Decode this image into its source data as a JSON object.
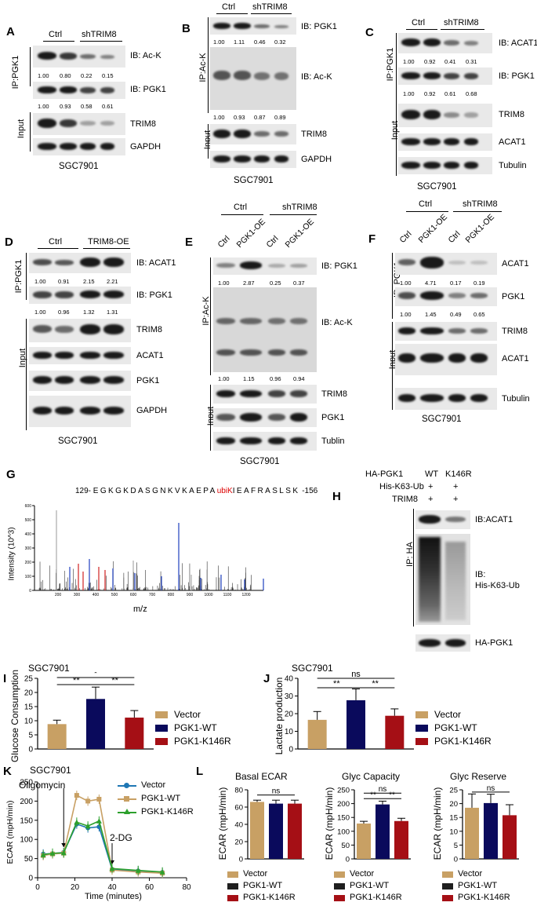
{
  "panels": {
    "A": "A",
    "B": "B",
    "C": "C",
    "D": "D",
    "E": "E",
    "F": "F",
    "G": "G",
    "H": "H",
    "I": "I",
    "J": "J",
    "K": "K",
    "L": "L"
  },
  "common": {
    "ctrl": "Ctrl",
    "shtrim8": "shTRIM8",
    "trim8oe": "TRIM8-OE",
    "pgk1oe": "PGK1-OE",
    "cell_line": "SGC7901",
    "input": "Input",
    "ip_pgk1": "IP:PGK1",
    "ip_pgk1_sp": "IP: PGK1",
    "ip_ack": "IP:Ac-K",
    "ip_ha": "IP: HA"
  },
  "blots": {
    "A": {
      "labels": [
        "IB: Ac-K",
        "IB: PGK1",
        "TRIM8",
        "GAPDH"
      ],
      "q1": [
        "1.00",
        "0.80",
        "0.22",
        "0.15"
      ],
      "q2": [
        "1.00",
        "0.93",
        "0.58",
        "0.61"
      ]
    },
    "B": {
      "labels": [
        "IB: PGK1",
        "IB: Ac-K",
        "TRIM8",
        "GAPDH"
      ],
      "q1": [
        "1.00",
        "1.11",
        "0.46",
        "0.32"
      ],
      "q2": [
        "1.00",
        "0.93",
        "0.87",
        "0.89"
      ]
    },
    "C": {
      "labels": [
        "IB: ACAT1",
        "IB: PGK1",
        "TRIM8",
        "ACAT1",
        "Tubulin"
      ],
      "q1": [
        "1.00",
        "0.92",
        "0.41",
        "0.31"
      ],
      "q2": [
        "1.00",
        "0.92",
        "0.61",
        "0.68"
      ]
    },
    "D": {
      "labels": [
        "IB: ACAT1",
        "IB: PGK1",
        "TRIM8",
        "ACAT1",
        "PGK1",
        "GAPDH"
      ],
      "q1": [
        "1.00",
        "0.91",
        "2.15",
        "2.21"
      ],
      "q2": [
        "1.00",
        "0.96",
        "1.32",
        "1.31"
      ]
    },
    "E": {
      "labels": [
        "IB: PGK1",
        "IB: Ac-K",
        "TRIM8",
        "PGK1",
        "Tublin"
      ],
      "q1": [
        "1.00",
        "2.87",
        "0.25",
        "0.37"
      ],
      "q2": [
        "1.00",
        "1.15",
        "0.96",
        "0.94"
      ]
    },
    "F": {
      "labels": [
        "ACAT1",
        "PGK1",
        "TRIM8",
        "ACAT1",
        "Tubulin"
      ],
      "q1": [
        "1.00",
        "4.71",
        "0.17",
        "0.19"
      ],
      "q2": [
        "1.00",
        "1.45",
        "0.49",
        "0.65"
      ]
    },
    "H": {
      "rows": [
        "HA-PGK1",
        "His-K63-Ub",
        "TRIM8"
      ],
      "cols": [
        "WT",
        "K146R"
      ],
      "plus": "+",
      "labels": [
        "IB:ACAT1",
        "IB:",
        "His-K63-Ub",
        "HA-PGK1"
      ]
    }
  },
  "spectrum": {
    "prefix": "129-",
    "suffix": "-156",
    "seq_before": "EGKGKDASGNKVKAEPA",
    "mod": "ubiK",
    "seq_after": "IEAFRASLSK",
    "ylabel": "Intensity (10^3)",
    "xlabel": "m/z",
    "yticks": [
      "0",
      "100",
      "200",
      "300",
      "400",
      "500",
      "600"
    ],
    "xticks": [
      "200",
      "300",
      "400",
      "500",
      "600",
      "700",
      "800",
      "900",
      "1000",
      "1100",
      "1200"
    ]
  },
  "chart_data": [
    {
      "type": "bar",
      "panel": "I",
      "title": "SGC7901",
      "ylabel": "Glucose Consumption",
      "ylim": [
        0,
        25
      ],
      "yticks": [
        "0",
        "5",
        "10",
        "15",
        "20",
        "25"
      ],
      "categories": [
        "Vector",
        "PGK1-WT",
        "PGK1-K146R"
      ],
      "values": [
        8.8,
        17.7,
        11.1
      ],
      "errors": [
        1.4,
        4.2,
        2.5
      ],
      "colors": [
        "#c8a064",
        "#0a0a5c",
        "#a50f15"
      ],
      "sig": [
        [
          "**",
          "*"
        ],
        [
          "**"
        ]
      ]
    },
    {
      "type": "bar",
      "panel": "J",
      "title": "SGC7901",
      "ylabel": "Lactate production",
      "ylim": [
        0,
        40
      ],
      "yticks": [
        "0",
        "10",
        "20",
        "30",
        "40"
      ],
      "categories": [
        "Vector",
        "PGK1-WT",
        "PGK1-K146R"
      ],
      "values": [
        16.5,
        27.6,
        18.8
      ],
      "errors": [
        4.7,
        6.4,
        3.9
      ],
      "colors": [
        "#c8a064",
        "#0a0a5c",
        "#a50f15"
      ],
      "sig": [
        "ns",
        "**",
        "**"
      ]
    },
    {
      "type": "line",
      "panel": "K",
      "title": "SGC7901",
      "ylabel": "ECAR (mpH/min)",
      "xlabel": "Time (minutes)",
      "xlim": [
        0,
        80
      ],
      "ylim": [
        0,
        250
      ],
      "xticks": [
        "0",
        "20",
        "40",
        "60",
        "80"
      ],
      "yticks": [
        "0",
        "50",
        "100",
        "150",
        "200",
        "250"
      ],
      "annotations": [
        "Oligomycin",
        "2-DG"
      ],
      "x": [
        3,
        8,
        14,
        21,
        27,
        33,
        40,
        54,
        67
      ],
      "series": [
        {
          "name": "Vector",
          "color": "#1f77b4",
          "values": [
            62,
            63,
            66,
            140,
            130,
            133,
            22,
            18,
            14
          ]
        },
        {
          "name": "PGK1-WT",
          "color": "#c8a064",
          "values": [
            58,
            62,
            64,
            215,
            200,
            205,
            20,
            15,
            12
          ]
        },
        {
          "name": "PGK1-K146R",
          "color": "#2ca02c",
          "values": [
            60,
            64,
            65,
            145,
            135,
            148,
            24,
            19,
            15
          ]
        }
      ]
    },
    {
      "type": "bar",
      "panel": "L1",
      "title": "Basal ECAR",
      "ylabel": "ECAR (mpH/min)",
      "ylim": [
        0,
        80
      ],
      "yticks": [
        "0",
        "20",
        "40",
        "60",
        "80"
      ],
      "categories": [
        "Vector",
        "PGK1-WT",
        "PGK1-K146R"
      ],
      "values": [
        66,
        64,
        64
      ],
      "errors": [
        2,
        4,
        4
      ],
      "sig": [
        "ns"
      ]
    },
    {
      "type": "bar",
      "panel": "L2",
      "title": "Glyc Capacity",
      "ylabel": "ECAR (mpH/min)",
      "ylim": [
        0,
        250
      ],
      "yticks": [
        "0",
        "50",
        "100",
        "150",
        "200",
        "250"
      ],
      "categories": [
        "Vector",
        "PGK1-WT",
        "PGK1-K146R"
      ],
      "values": [
        128,
        197,
        137
      ],
      "errors": [
        8,
        12,
        10
      ],
      "sig": [
        "ns",
        "**",
        "**"
      ]
    },
    {
      "type": "bar",
      "panel": "L3",
      "title": "Glyc Reserve",
      "ylabel": "ECAR (mpH/min)",
      "ylim": [
        0,
        25
      ],
      "yticks": [
        "0",
        "5",
        "10",
        "15",
        "20",
        "25"
      ],
      "categories": [
        "Vector",
        "PGK1-WT",
        "PGK1-K146R"
      ],
      "values": [
        18.5,
        20.2,
        15.8
      ],
      "errors": [
        5,
        3.2,
        3.8
      ],
      "sig": [
        "ns"
      ]
    }
  ],
  "legend_L": [
    "Vector",
    "PGK1-WT",
    "PGK1-K146R"
  ]
}
